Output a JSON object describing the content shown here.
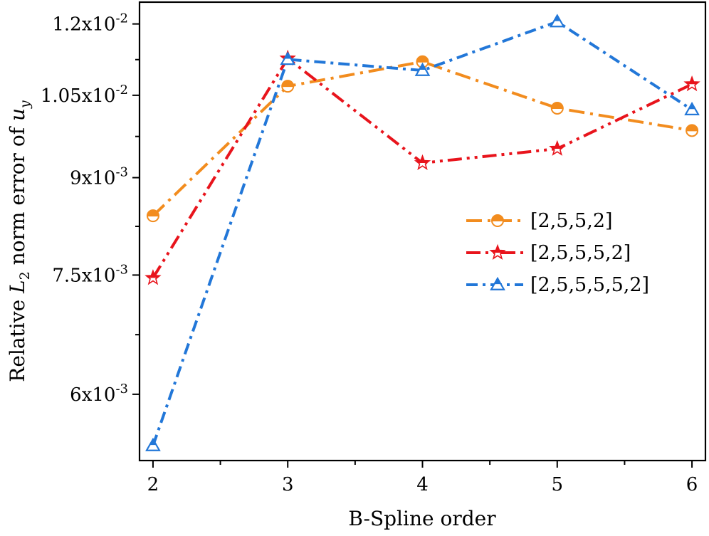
{
  "chart_data": {
    "type": "line",
    "xlabel": "B-Spline order",
    "ylabel_parts": [
      "Relative ",
      "L",
      "2",
      " norm error of ",
      "u",
      "y"
    ],
    "x": [
      2,
      3,
      4,
      5,
      6
    ],
    "xlim": [
      1.9,
      6.1
    ],
    "ylim": [
      0.0053,
      0.0125
    ],
    "y_scale": "log",
    "x_ticks": [
      "2",
      "3",
      "4",
      "5",
      "6"
    ],
    "y_ticks": [
      {
        "value": 0.012,
        "base": "1.2x10",
        "exp": "-2"
      },
      {
        "value": 0.0105,
        "base": "1.05x10",
        "exp": "-2"
      },
      {
        "value": 0.009,
        "base": "9x10",
        "exp": "-3"
      },
      {
        "value": 0.0075,
        "base": "7.5x10",
        "exp": "-3"
      },
      {
        "value": 0.006,
        "base": "6x10",
        "exp": "-3"
      }
    ],
    "series": [
      {
        "name": "[2,5,5,2]",
        "color": "#f28c1e",
        "marker": "half-circle",
        "dash": "long-dash-dot",
        "values": [
          0.00838,
          0.01068,
          0.01118,
          0.01025,
          0.00983
        ]
      },
      {
        "name": "[2,5,5,5,2]",
        "color": "#e8141c",
        "marker": "star",
        "dash": "dash-dot-dot",
        "values": [
          0.00746,
          0.01125,
          0.00925,
          0.0095,
          0.01072
        ]
      },
      {
        "name": "[2,5,5,5,5,2]",
        "color": "#2277d8",
        "marker": "triangle",
        "dash": "dash-dot",
        "values": [
          0.00545,
          0.01123,
          0.011,
          0.01205,
          0.01022
        ]
      }
    ],
    "legend": "center-right",
    "grid": false
  }
}
